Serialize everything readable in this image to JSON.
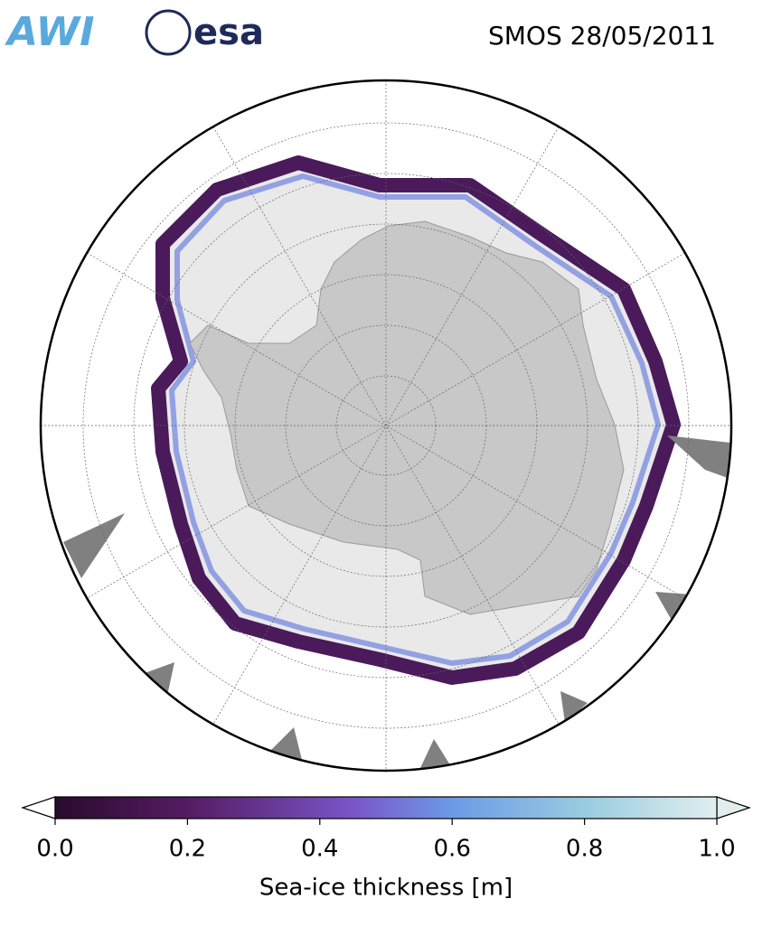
{
  "header": {
    "logos": [
      "AWI",
      "esa"
    ],
    "title": "SMOS 28/05/2011"
  },
  "map": {
    "colorbar": {
      "label": "Sea-ice thickness [m]",
      "lim": [
        0,
        1
      ],
      "ticks": [
        {
          "value": 0,
          "label": "0.0"
        },
        {
          "value": 0.2,
          "label": "0.2"
        },
        {
          "value": 0.4,
          "label": "0.4"
        },
        {
          "value": 0.6,
          "label": "0.6"
        },
        {
          "value": 0.8,
          "label": "0.8"
        },
        {
          "value": 1,
          "label": "1.0"
        }
      ]
    }
  }
}
